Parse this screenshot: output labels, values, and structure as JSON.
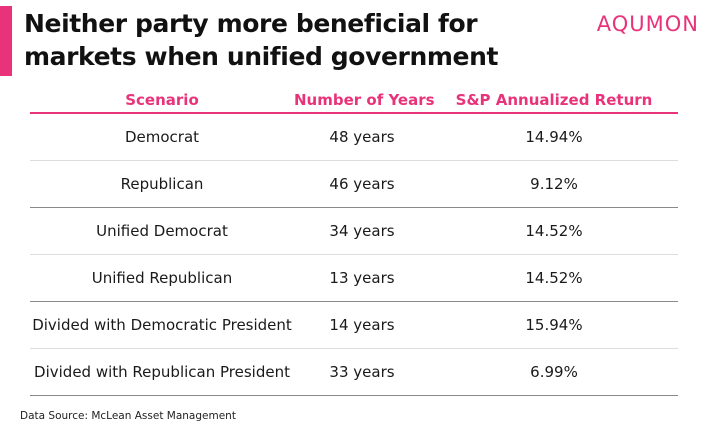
{
  "header": {
    "title": "Neither party more beneficial for markets when unified government",
    "logo": "AQUMON",
    "accent_color": "#e8337a"
  },
  "table": {
    "columns": [
      "Scenario",
      "Number of Years",
      "S&P Annualized Return"
    ],
    "rows": [
      {
        "scenario": "Democrat",
        "years": "48 years",
        "return": "14.94%"
      },
      {
        "scenario": "Republican",
        "years": "46 years",
        "return": "9.12%"
      },
      {
        "scenario": "Unified Democrat",
        "years": "34 years",
        "return": "14.52%"
      },
      {
        "scenario": "Unified Republican",
        "years": "13 years",
        "return": "14.52%"
      },
      {
        "scenario": "Divided with Democratic President",
        "years": "14 years",
        "return": "15.94%"
      },
      {
        "scenario": "Divided with Republican President",
        "years": "33 years",
        "return": "6.99%"
      }
    ]
  },
  "footer": {
    "source": "Data Source: McLean Asset Management"
  }
}
